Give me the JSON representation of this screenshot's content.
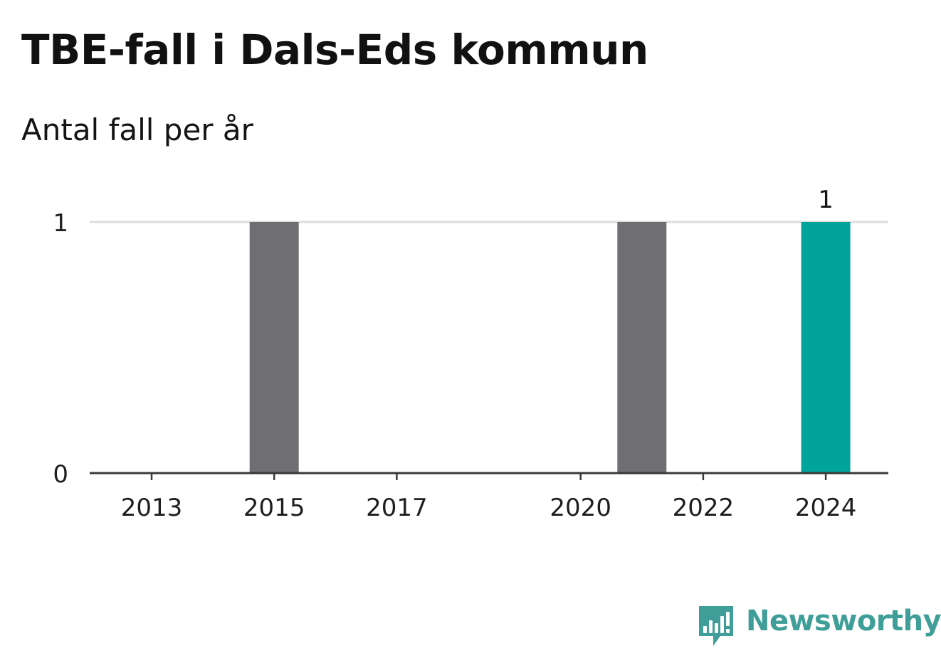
{
  "header": {
    "title": "TBE-fall i Dals-Eds kommun",
    "subtitle": "Antal fall per år"
  },
  "chart_data": {
    "type": "bar",
    "x": [
      2013,
      2014,
      2015,
      2016,
      2017,
      2018,
      2019,
      2020,
      2021,
      2022,
      2023,
      2024
    ],
    "x_ticks": [
      "2013",
      "2015",
      "2017",
      "2020",
      "2022",
      "2024"
    ],
    "values": [
      0,
      0,
      1,
      0,
      0,
      0,
      0,
      0,
      1,
      0,
      0,
      1
    ],
    "y_ticks": [
      0,
      1
    ],
    "ylim": [
      0,
      1
    ],
    "highlight": 2024,
    "data_labels": [
      {
        "x": 2024,
        "label": "1"
      }
    ],
    "bar_color": "#6e6e73",
    "highlight_color": "#00a49b",
    "grid": true,
    "title": "TBE-fall i Dals-Eds kommun",
    "xlabel": "",
    "ylabel": ""
  },
  "branding": {
    "name": "Newsworthy",
    "icon": "newsworthy-logo-icon",
    "color": "#3f9e97"
  }
}
